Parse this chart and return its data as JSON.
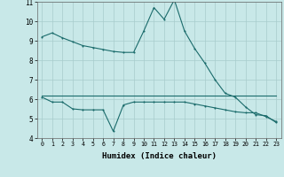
{
  "xlabel": "Humidex (Indice chaleur)",
  "bg_color": "#c8e8e8",
  "line_color": "#1a6b6b",
  "grid_color": "#a8cccc",
  "x": [
    0,
    1,
    2,
    3,
    4,
    5,
    6,
    7,
    8,
    9,
    10,
    11,
    12,
    13,
    14,
    15,
    16,
    17,
    18,
    19,
    20,
    21,
    22,
    23
  ],
  "line1": [
    9.2,
    9.4,
    9.15,
    8.95,
    8.75,
    8.65,
    8.55,
    8.45,
    8.4,
    8.4,
    9.5,
    10.7,
    10.1,
    11.1,
    9.5,
    8.6,
    7.85,
    7.0,
    6.3,
    6.1,
    5.6,
    5.2,
    5.15,
    4.8
  ],
  "line2": [
    6.2,
    6.2,
    6.2,
    6.2,
    6.2,
    6.2,
    6.2,
    6.2,
    6.2,
    6.2,
    6.2,
    6.2,
    6.2,
    6.2,
    6.2,
    6.2,
    6.2,
    6.2,
    6.2,
    6.2,
    6.2,
    6.2,
    6.2,
    6.2
  ],
  "line3": [
    6.1,
    5.85,
    5.85,
    5.5,
    5.45,
    5.45,
    5.45,
    4.35,
    5.7,
    5.85,
    5.85,
    5.85,
    5.85,
    5.85,
    5.85,
    5.75,
    5.65,
    5.55,
    5.45,
    5.35,
    5.3,
    5.3,
    5.1,
    4.85
  ],
  "ylim": [
    4,
    11
  ],
  "xlim": [
    -0.5,
    23.5
  ]
}
